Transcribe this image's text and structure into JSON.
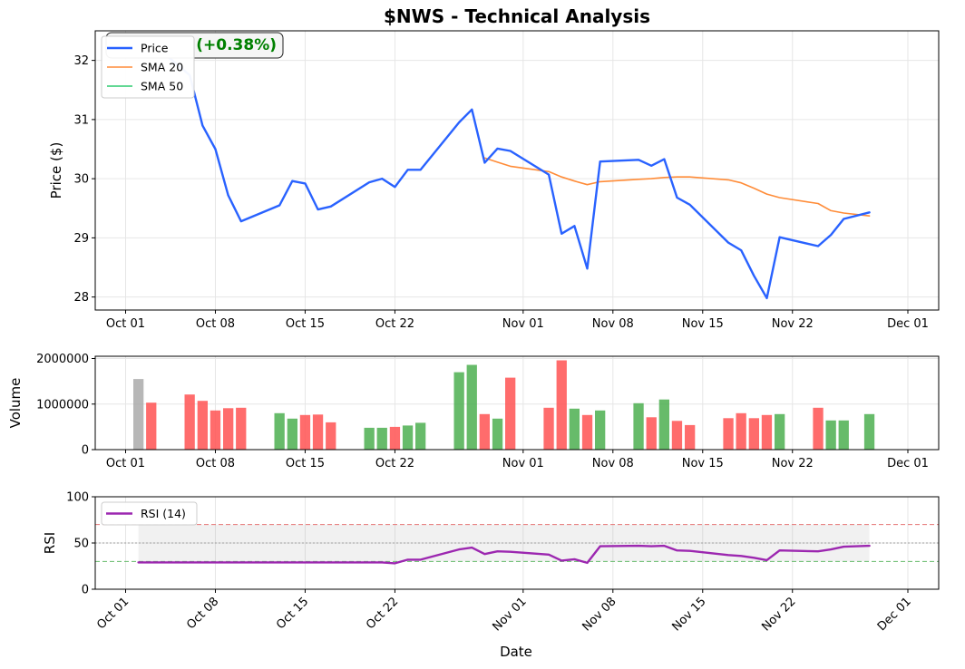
{
  "title": "$NWS - Technical Analysis",
  "price_badge": "(+0.38%)",
  "date_ticks": [
    "Oct 01",
    "Oct 08",
    "Oct 15",
    "Oct 22",
    "Nov 01",
    "Nov 08",
    "Nov 15",
    "Nov 22",
    "Dec 01"
  ],
  "xlabel": "Date",
  "colors": {
    "price": "#2962ff",
    "sma20": "#ff8c38",
    "sma50": "#2ecc71",
    "up_volume": "#4caf50",
    "down_volume": "#ff5252",
    "neutral_volume": "#aaaaaa",
    "rsi": "#9c27b0",
    "badge_text": "#008000"
  },
  "chart_data": [
    {
      "type": "line",
      "panel": "price",
      "ylabel": "Price ($)",
      "ylim": [
        27.78,
        32.5
      ],
      "yticks": [
        28,
        29,
        30,
        31,
        32
      ],
      "grid": true,
      "legend_position": "top-left",
      "series": [
        {
          "name": "Price",
          "x": [
            "2024-10-02",
            "2024-10-03",
            "2024-10-06",
            "2024-10-07",
            "2024-10-08",
            "2024-10-09",
            "2024-10-10",
            "2024-10-13",
            "2024-10-14",
            "2024-10-15",
            "2024-10-16",
            "2024-10-17",
            "2024-10-20",
            "2024-10-21",
            "2024-10-22",
            "2024-10-23",
            "2024-10-24",
            "2024-10-27",
            "2024-10-28",
            "2024-10-29",
            "2024-10-30",
            "2024-10-31",
            "2024-11-03",
            "2024-11-04",
            "2024-11-05",
            "2024-11-06",
            "2024-11-07",
            "2024-11-10",
            "2024-11-11",
            "2024-11-12",
            "2024-11-13",
            "2024-11-14",
            "2024-11-17",
            "2024-11-18",
            "2024-11-19",
            "2024-11-20",
            "2024-11-21",
            "2024-11-24",
            "2024-11-25",
            "2024-11-26",
            "2024-11-28"
          ],
          "values": [
            32.05,
            32.3,
            31.75,
            30.9,
            30.5,
            29.72,
            29.28,
            29.55,
            29.96,
            29.92,
            29.48,
            29.53,
            29.94,
            30.0,
            29.86,
            30.15,
            30.15,
            30.95,
            31.17,
            30.27,
            30.51,
            30.47,
            30.07,
            29.07,
            29.2,
            28.48,
            30.29,
            30.32,
            30.22,
            30.33,
            29.68,
            29.56,
            28.92,
            28.79,
            28.36,
            27.98,
            29.01,
            28.86,
            29.05,
            29.32,
            29.43
          ]
        },
        {
          "name": "SMA 20",
          "x": [
            "2024-10-29",
            "2024-10-30",
            "2024-10-31",
            "2024-11-03",
            "2024-11-04",
            "2024-11-05",
            "2024-11-06",
            "2024-11-07",
            "2024-11-10",
            "2024-11-11",
            "2024-11-12",
            "2024-11-13",
            "2024-11-14",
            "2024-11-17",
            "2024-11-18",
            "2024-11-19",
            "2024-11-20",
            "2024-11-21",
            "2024-11-24",
            "2024-11-25",
            "2024-11-26",
            "2024-11-28"
          ],
          "values": [
            30.35,
            30.28,
            30.21,
            30.12,
            30.03,
            29.96,
            29.9,
            29.95,
            29.99,
            30.0,
            30.02,
            30.03,
            30.03,
            29.98,
            29.93,
            29.84,
            29.74,
            29.68,
            29.58,
            29.46,
            29.42,
            29.37
          ]
        },
        {
          "name": "SMA 50",
          "x": [],
          "values": []
        }
      ]
    },
    {
      "type": "bar",
      "panel": "volume",
      "ylabel": "Volume",
      "ylim": [
        0,
        2050000
      ],
      "yticks": [
        0,
        1000000,
        2000000
      ],
      "grid": true,
      "x": [
        "2024-10-02",
        "2024-10-03",
        "2024-10-06",
        "2024-10-07",
        "2024-10-08",
        "2024-10-09",
        "2024-10-10",
        "2024-10-13",
        "2024-10-14",
        "2024-10-15",
        "2024-10-16",
        "2024-10-17",
        "2024-10-20",
        "2024-10-21",
        "2024-10-22",
        "2024-10-23",
        "2024-10-24",
        "2024-10-27",
        "2024-10-28",
        "2024-10-29",
        "2024-10-30",
        "2024-10-31",
        "2024-11-03",
        "2024-11-04",
        "2024-11-05",
        "2024-11-06",
        "2024-11-07",
        "2024-11-10",
        "2024-11-11",
        "2024-11-12",
        "2024-11-13",
        "2024-11-14",
        "2024-11-17",
        "2024-11-18",
        "2024-11-19",
        "2024-11-20",
        "2024-11-21",
        "2024-11-24",
        "2024-11-25",
        "2024-11-26",
        "2024-11-28"
      ],
      "values": [
        1550000,
        1030000,
        1210000,
        1070000,
        860000,
        910000,
        920000,
        800000,
        680000,
        760000,
        770000,
        600000,
        480000,
        480000,
        500000,
        530000,
        590000,
        1700000,
        1860000,
        780000,
        680000,
        1580000,
        920000,
        1960000,
        900000,
        760000,
        860000,
        1020000,
        710000,
        1100000,
        630000,
        540000,
        690000,
        800000,
        690000,
        760000,
        780000,
        920000,
        640000,
        640000,
        780000
      ],
      "direction": [
        "neutral",
        "down",
        "down",
        "down",
        "down",
        "down",
        "down",
        "up",
        "up",
        "down",
        "down",
        "down",
        "up",
        "up",
        "down",
        "up",
        "up",
        "up",
        "up",
        "down",
        "up",
        "down",
        "down",
        "down",
        "up",
        "down",
        "up",
        "up",
        "down",
        "up",
        "down",
        "down",
        "down",
        "down",
        "down",
        "down",
        "up",
        "down",
        "up",
        "up",
        "up"
      ]
    },
    {
      "type": "line",
      "panel": "rsi",
      "ylabel": "RSI",
      "ylim": [
        0,
        100
      ],
      "yticks": [
        0,
        50,
        100
      ],
      "reference_lines": [
        70,
        50,
        30
      ],
      "grid": true,
      "legend_position": "top-left",
      "series": [
        {
          "name": "RSI (14)",
          "x": [
            "2024-10-02",
            "2024-10-03",
            "2024-10-06",
            "2024-10-07",
            "2024-10-08",
            "2024-10-09",
            "2024-10-10",
            "2024-10-13",
            "2024-10-14",
            "2024-10-15",
            "2024-10-16",
            "2024-10-17",
            "2024-10-20",
            "2024-10-21",
            "2024-10-22",
            "2024-10-23",
            "2024-10-24",
            "2024-10-27",
            "2024-10-28",
            "2024-10-29",
            "2024-10-30",
            "2024-10-31",
            "2024-11-03",
            "2024-11-04",
            "2024-11-05",
            "2024-11-06",
            "2024-11-07",
            "2024-11-10",
            "2024-11-11",
            "2024-11-12",
            "2024-11-13",
            "2024-11-14",
            "2024-11-17",
            "2024-11-18",
            "2024-11-19",
            "2024-11-20",
            "2024-11-21",
            "2024-11-24",
            "2024-11-25",
            "2024-11-26",
            "2024-11-28"
          ],
          "values": [
            29,
            29,
            29,
            29,
            29,
            29,
            29,
            29,
            29,
            29,
            29,
            29,
            29,
            29,
            28,
            32,
            32,
            43,
            45,
            38,
            41,
            40.5,
            37.5,
            31,
            32.5,
            28.5,
            46.5,
            47,
            46.5,
            47,
            42,
            41.5,
            37,
            36,
            34,
            31.5,
            42,
            41,
            43,
            46,
            47
          ]
        }
      ]
    }
  ]
}
